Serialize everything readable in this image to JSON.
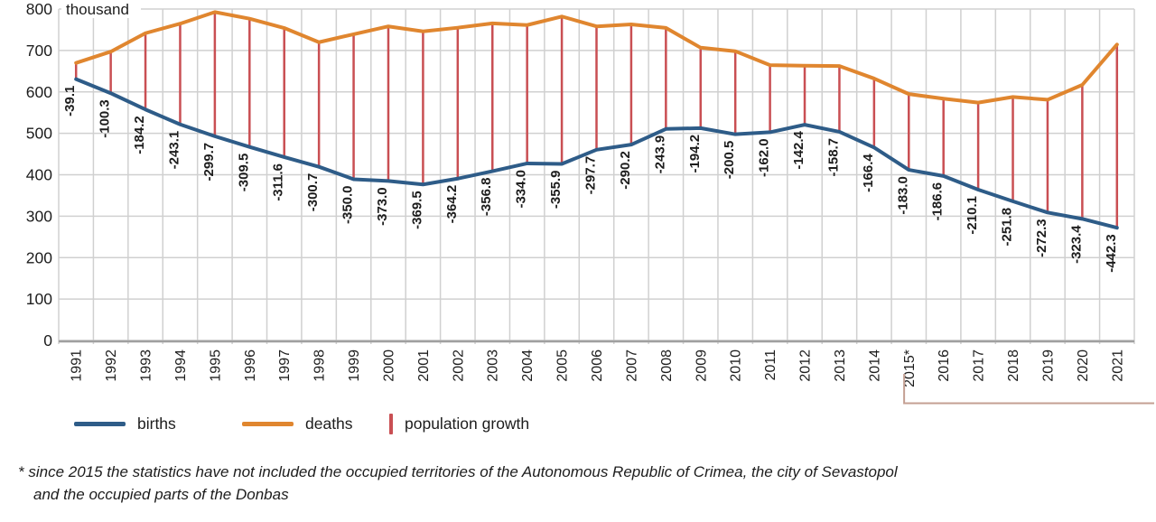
{
  "chart_data": {
    "type": "line",
    "title": "",
    "unit_label": "thousand",
    "x_labels": [
      "1991",
      "1992",
      "1993",
      "1994",
      "1995",
      "1996",
      "1997",
      "1998",
      "1999",
      "2000",
      "2001",
      "2002",
      "2003",
      "2004",
      "2005",
      "2006",
      "2007",
      "2008",
      "2009",
      "2010",
      "2011",
      "2012",
      "2013",
      "2014",
      "2015*",
      "2016",
      "2017",
      "2018",
      "2019",
      "2020",
      "2021"
    ],
    "series": [
      {
        "name": "births",
        "color": "#2e5c88",
        "values": [
          630.8,
          596.8,
          557.5,
          521.5,
          492.9,
          467.2,
          442.6,
          419.2,
          389.2,
          385.1,
          376.5,
          390.7,
          408.6,
          427.3,
          426.1,
          460.4,
          472.7,
          510.6,
          512.5,
          497.7,
          502.6,
          520.7,
          503.7,
          465.9,
          411.8,
          397.0,
          364.0,
          335.9,
          308.8,
          293.5,
          272.0
        ]
      },
      {
        "name": "deaths",
        "color": "#e0862f",
        "values": [
          669.9,
          697.1,
          741.7,
          764.6,
          792.6,
          776.7,
          754.2,
          719.9,
          739.2,
          758.1,
          746.0,
          754.9,
          765.4,
          761.3,
          782.0,
          758.1,
          762.9,
          754.5,
          706.7,
          698.2,
          664.6,
          663.1,
          662.4,
          632.3,
          594.8,
          583.6,
          574.1,
          587.7,
          581.1,
          616.9,
          714.3
        ]
      }
    ],
    "population_growth": {
      "name": "population growth",
      "color": "#c94f53",
      "values": [
        -39.1,
        -100.3,
        -184.2,
        -243.1,
        -299.7,
        -309.5,
        -311.6,
        -300.7,
        -350.0,
        -373.0,
        -369.5,
        -364.2,
        -356.8,
        -334.0,
        -355.9,
        -297.7,
        -290.2,
        -243.9,
        -194.2,
        -200.5,
        -162.0,
        -142.4,
        -158.7,
        -166.4,
        -183.0,
        -186.6,
        -210.1,
        -251.8,
        -272.3,
        -323.4,
        -442.3
      ]
    },
    "ylim": [
      0,
      800
    ],
    "ytick_step": 100,
    "grid": true,
    "legend_position": "bottom",
    "bracket_years": [
      "2015*",
      "2021"
    ]
  },
  "legend": {
    "births": "births",
    "deaths": "deaths",
    "growth": "population growth"
  },
  "footnote": {
    "line1": "* since 2015 the statistics have not included the occupied territories of the Autonomous Republic of Crimea, the city of Sevastopol",
    "line2": "and the occupied parts of the Donbas"
  },
  "colors": {
    "births": "#2e5c88",
    "deaths": "#e0862f",
    "growth": "#c94f53",
    "grid": "#d0d0d0",
    "axis": "#a0a0a0",
    "bracket": "#c4a093",
    "text": "#1d1d1d"
  }
}
